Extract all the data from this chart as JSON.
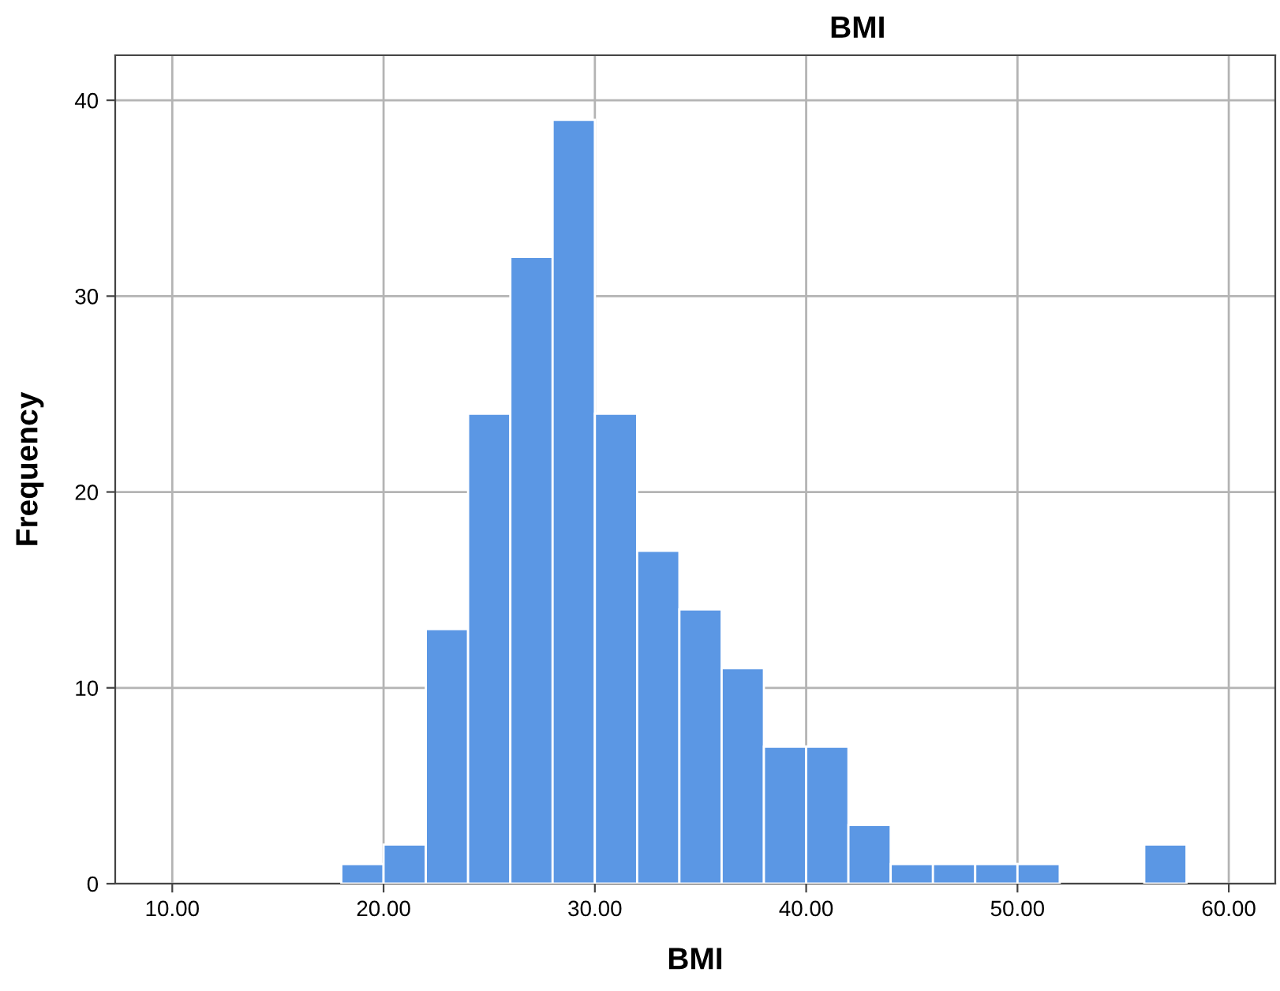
{
  "chart_data": {
    "type": "histogram",
    "title": "BMI",
    "xlabel": "BMI",
    "ylabel": "Frequency",
    "bins": [
      18,
      20,
      22,
      24,
      26,
      28,
      30,
      32,
      34,
      36,
      38,
      40,
      42,
      44,
      46,
      48,
      50,
      52,
      54,
      56,
      58
    ],
    "values": [
      1,
      2,
      13,
      24,
      32,
      39,
      24,
      17,
      14,
      11,
      7,
      7,
      3,
      1,
      1,
      1,
      1,
      0,
      0,
      2
    ],
    "color": "#5b97e4",
    "xlim": [
      7.3,
      62.2
    ],
    "ylim": [
      0,
      42.3
    ],
    "xticks": [
      {
        "value": 10,
        "label": "10.00"
      },
      {
        "value": 20,
        "label": "20.00"
      },
      {
        "value": 30,
        "label": "30.00"
      },
      {
        "value": 40,
        "label": "40.00"
      },
      {
        "value": 50,
        "label": "50.00"
      },
      {
        "value": 60,
        "label": "60.00"
      }
    ],
    "yticks": [
      0,
      10,
      20,
      30,
      40
    ],
    "grid": true
  }
}
